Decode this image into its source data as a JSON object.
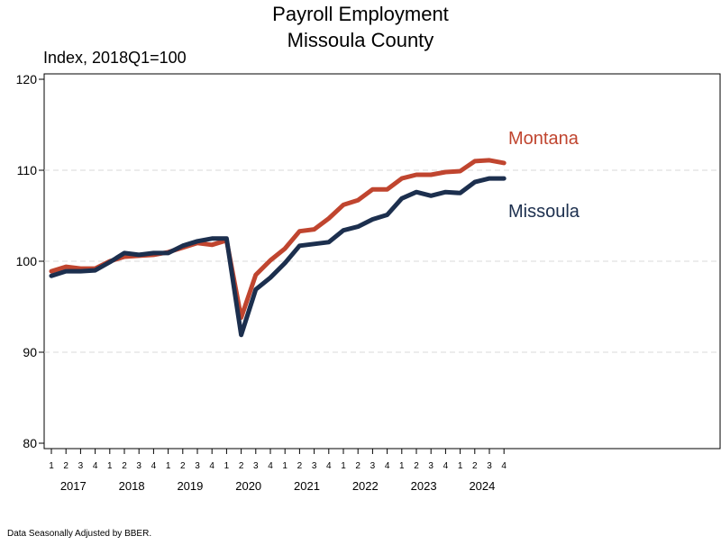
{
  "chart_data": {
    "type": "line",
    "title": "Payroll Employment",
    "subtitle": "Missoula County",
    "ylabel": "Index, 2018Q1=100",
    "ylim": [
      80,
      120
    ],
    "yticks": [
      80,
      90,
      100,
      110,
      120
    ],
    "grid": true,
    "x_quarter_labels": [
      "1",
      "2",
      "3",
      "4",
      "1",
      "2",
      "3",
      "4",
      "1",
      "2",
      "3",
      "4",
      "1",
      "2",
      "3",
      "4",
      "1",
      "2",
      "3",
      "4",
      "1",
      "2",
      "3",
      "4",
      "1",
      "2",
      "3",
      "4",
      "1",
      "2",
      "3",
      "4"
    ],
    "x_year_labels": [
      "2017",
      "2018",
      "2019",
      "2020",
      "2021",
      "2022",
      "2023",
      "2024"
    ],
    "x": [
      "2017Q1",
      "2017Q2",
      "2017Q3",
      "2017Q4",
      "2018Q1",
      "2018Q2",
      "2018Q3",
      "2018Q4",
      "2019Q1",
      "2019Q2",
      "2019Q3",
      "2019Q4",
      "2020Q1",
      "2020Q2",
      "2020Q3",
      "2020Q4",
      "2021Q1",
      "2021Q2",
      "2021Q3",
      "2021Q4",
      "2022Q1",
      "2022Q2",
      "2022Q3",
      "2022Q4",
      "2023Q1",
      "2023Q2",
      "2023Q3",
      "2023Q4",
      "2024Q1",
      "2024Q2",
      "2024Q3",
      "2024Q4"
    ],
    "series": [
      {
        "name": "Montana",
        "color": "#c0452f",
        "values": [
          98.9,
          99.4,
          99.2,
          99.2,
          100.0,
          100.5,
          100.6,
          100.7,
          101.0,
          101.5,
          102.0,
          101.8,
          102.3,
          93.8,
          98.5,
          100.1,
          101.4,
          103.3,
          103.5,
          104.7,
          106.2,
          106.7,
          107.9,
          107.9,
          109.1,
          109.5,
          109.5,
          109.8,
          109.9,
          111.0,
          111.1,
          110.8
        ]
      },
      {
        "name": "Missoula",
        "color": "#1c2f4e",
        "values": [
          98.4,
          98.9,
          98.9,
          99.0,
          99.9,
          100.9,
          100.7,
          100.9,
          100.9,
          101.7,
          102.2,
          102.5,
          102.5,
          91.9,
          96.9,
          98.2,
          99.8,
          101.7,
          101.9,
          102.1,
          103.4,
          103.8,
          104.6,
          105.1,
          106.9,
          107.6,
          107.2,
          107.6,
          107.5,
          108.7,
          109.1,
          109.1
        ]
      }
    ]
  },
  "footnote": "Data Seasonally Adjusted by BBER."
}
